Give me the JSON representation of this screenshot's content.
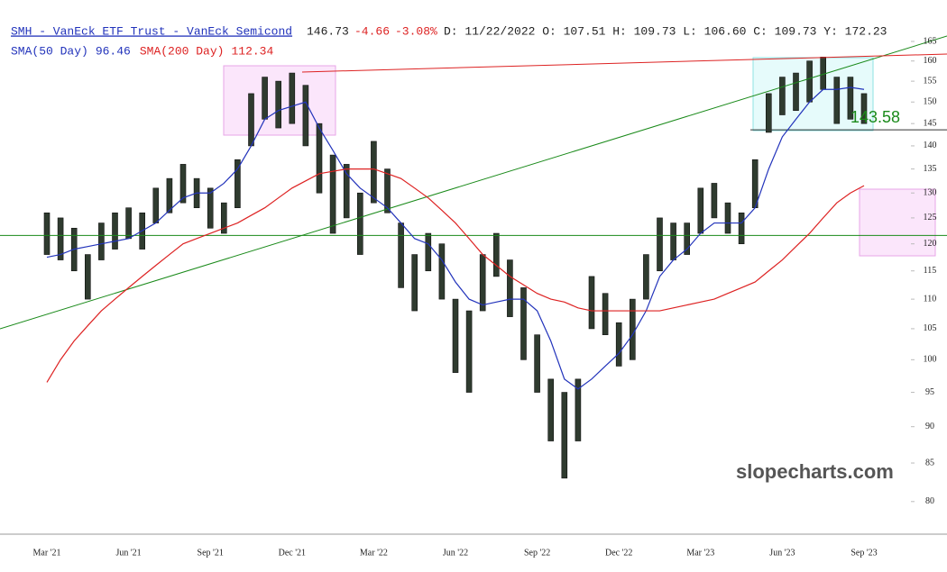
{
  "chart_data": {
    "type": "candlestick",
    "quote": {
      "symbol": "SMH - VanEck ETF Trust - VanEck Semicond",
      "last": 146.73,
      "change": -4.66,
      "change_pct": "-3.08%",
      "info": "D: 11/22/2022 O: 107.51 H: 109.73 L: 106.60 C: 109.73 Y: 172.23"
    },
    "categories": [
      "Mar '21",
      null,
      null,
      null,
      null,
      null,
      "Jun '21",
      null,
      null,
      null,
      null,
      null,
      "Sep '21",
      null,
      null,
      null,
      null,
      null,
      "Dec '21",
      null,
      null,
      null,
      null,
      null,
      "Mar '22",
      null,
      null,
      null,
      null,
      null,
      "Jun '22",
      null,
      null,
      null,
      null,
      null,
      "Sep '22",
      null,
      null,
      null,
      null,
      null,
      "Dec '22",
      null,
      null,
      null,
      null,
      null,
      "Mar '23",
      null,
      null,
      null,
      null,
      null,
      "Jun '23",
      null,
      null,
      null,
      null,
      null,
      "Sep '23"
    ],
    "low": [
      118,
      117,
      115,
      110,
      117,
      119,
      121,
      119,
      124,
      126,
      128,
      127,
      123,
      122,
      127,
      140,
      146,
      144,
      145,
      140,
      130,
      122,
      125,
      118,
      128,
      126,
      112,
      108,
      115,
      110,
      98,
      95,
      108,
      114,
      107,
      100,
      95,
      88,
      83,
      88,
      105,
      104,
      99,
      100,
      110,
      115,
      117,
      118,
      122,
      125,
      122,
      120,
      127,
      143,
      147,
      148,
      150,
      153,
      145,
      146,
      145
    ],
    "high": [
      126,
      125,
      123,
      118,
      124,
      126,
      127,
      126,
      131,
      133,
      136,
      133,
      131,
      128,
      137,
      152,
      156,
      155,
      157,
      154,
      145,
      138,
      136,
      130,
      141,
      135,
      124,
      118,
      122,
      120,
      110,
      108,
      118,
      122,
      117,
      112,
      104,
      97,
      95,
      97,
      114,
      111,
      106,
      110,
      118,
      125,
      124,
      124,
      131,
      132,
      128,
      126,
      137,
      152,
      156,
      157,
      160,
      161,
      156,
      156,
      152
    ],
    "candle_color": "#2f3b2f",
    "series": [
      {
        "name": "SMA(50 Day)",
        "readout": 96.46,
        "color": "#2233bb",
        "values": [
          117.5,
          118,
          119,
          119.5,
          120,
          120.5,
          121,
          122.5,
          124,
          126.5,
          129,
          130,
          130,
          132,
          135,
          140,
          146,
          148,
          149,
          150,
          144,
          139,
          134,
          131,
          129,
          127,
          124,
          121,
          120,
          117,
          113,
          110,
          109,
          109.5,
          110,
          110,
          108,
          103,
          97,
          95.5,
          97,
          99,
          101,
          104,
          108,
          114,
          117,
          119,
          122,
          124,
          124,
          124,
          127,
          135,
          142,
          146,
          150,
          153,
          153,
          153.5,
          153
        ]
      },
      {
        "name": "SMA(200 Day)",
        "readout": 112.34,
        "color": "#dd2222",
        "values": [
          96.5,
          100,
          103,
          105.5,
          108,
          110,
          112,
          114,
          116,
          118,
          120,
          121,
          122,
          123,
          124,
          125.5,
          127,
          129,
          131,
          132.5,
          134,
          134.5,
          135,
          135,
          135,
          134,
          133,
          131,
          129,
          126.5,
          124,
          121,
          118,
          116,
          114,
          112.5,
          111,
          110,
          109.5,
          108.5,
          108,
          108,
          108,
          108,
          108,
          108,
          108.5,
          109,
          109.5,
          110,
          111,
          112,
          113,
          115,
          117,
          119.5,
          122,
          125,
          128,
          130,
          131.5
        ]
      }
    ],
    "level": {
      "value": 143.58,
      "label": "143.58",
      "color": "#1a8a1a"
    },
    "support": {
      "value": 121.6,
      "color": "#1a8a1a"
    },
    "watermark": "slopecharts.com",
    "log_scale": true,
    "ylim": [
      76,
      167
    ],
    "yticks": [
      80,
      85,
      90,
      95,
      100,
      105,
      110,
      115,
      120,
      125,
      130,
      135,
      140,
      145,
      150,
      155,
      160,
      165
    ]
  }
}
